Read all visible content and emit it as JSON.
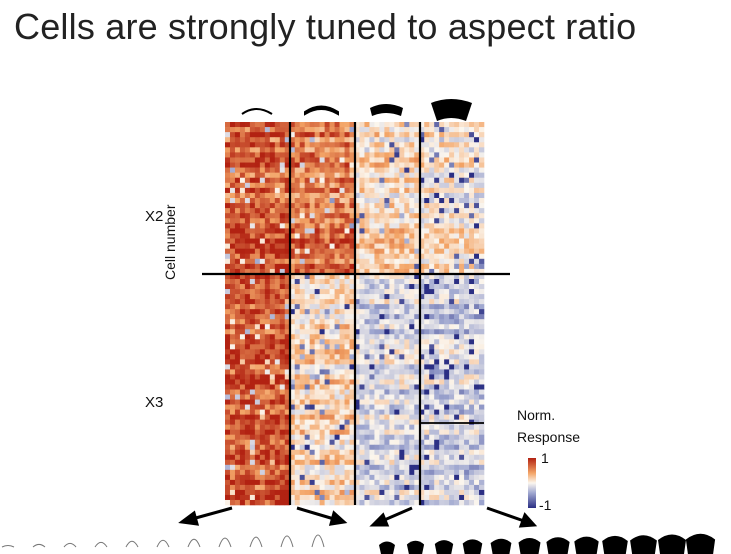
{
  "title": "Cells are strongly tuned to aspect ratio",
  "heatmap": {
    "ylabel": "Cell number",
    "groups": [
      "X2",
      "X3"
    ],
    "colorbar_title_line1": "Norm.",
    "colorbar_title_line2": "Response",
    "colorbar_max_label": "1",
    "colorbar_min_label": "-1",
    "value_range": [
      -1,
      1
    ],
    "column_blocks": 4,
    "block_mean_response_X2": [
      0.75,
      0.6,
      0.15,
      0.05
    ],
    "block_mean_response_X3": [
      0.8,
      0.15,
      -0.15,
      -0.2
    ],
    "colors": {
      "high": "#b22212",
      "mid_high": "#f3a466",
      "neutral": "#fbf6ee",
      "low": "#2b2f84"
    },
    "stimulus_icons": [
      "thin-arc-icon",
      "medium-arc-icon",
      "thick-arc-icon",
      "thickest-arc-icon"
    ]
  }
}
